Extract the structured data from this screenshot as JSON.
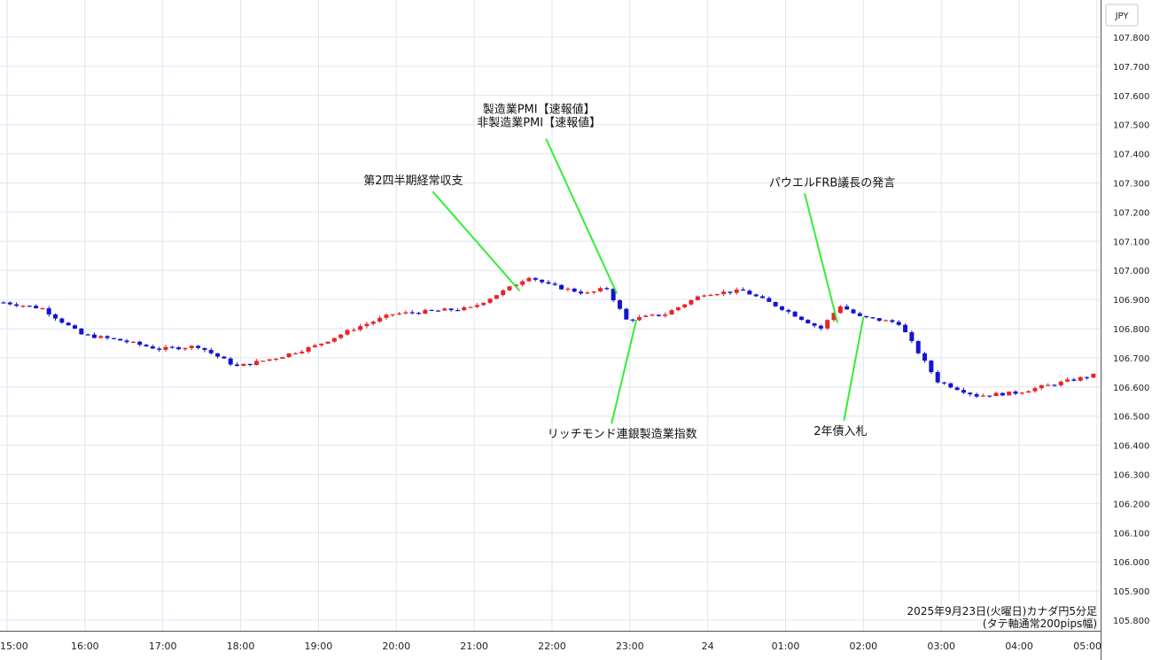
{
  "chart_data": {
    "type": "candlestick",
    "currency": "JPY",
    "ylim": [
      105.78,
      107.87
    ],
    "y_ticks": [
      "107.800",
      "107.700",
      "107.600",
      "107.500",
      "107.400",
      "107.300",
      "107.200",
      "107.100",
      "107.000",
      "106.900",
      "106.800",
      "106.700",
      "106.600",
      "106.500",
      "106.400",
      "106.300",
      "106.200",
      "106.100",
      "106.000",
      "105.900",
      "105.800"
    ],
    "x_ticks": [
      "15:00",
      "16:00",
      "17:00",
      "18:00",
      "19:00",
      "20:00",
      "21:00",
      "22:00",
      "23:00",
      "24",
      "01:00",
      "02:00",
      "03:00",
      "04:00",
      "05:00"
    ],
    "grid": true,
    "colors": {
      "up": "#e8232a",
      "down": "#1414d2",
      "annotation_line": "#33ee33",
      "grid": "#dde6f0"
    },
    "series": [
      {
        "time": "15:00",
        "close": 106.89
      },
      {
        "time": "15:30",
        "close": 106.87
      },
      {
        "time": "16:00",
        "close": 106.78
      },
      {
        "time": "16:30",
        "close": 106.76
      },
      {
        "time": "17:00",
        "close": 106.73
      },
      {
        "time": "17:30",
        "close": 106.74
      },
      {
        "time": "18:00",
        "close": 106.67
      },
      {
        "time": "18:30",
        "close": 106.7
      },
      {
        "time": "19:00",
        "close": 106.74
      },
      {
        "time": "19:30",
        "close": 106.8
      },
      {
        "time": "20:00",
        "close": 106.85
      },
      {
        "time": "20:30",
        "close": 106.86
      },
      {
        "time": "21:00",
        "close": 106.87
      },
      {
        "time": "21:30",
        "close": 106.94
      },
      {
        "time": "21:45",
        "close": 106.98
      },
      {
        "time": "22:00",
        "close": 106.95
      },
      {
        "time": "22:30",
        "close": 106.92
      },
      {
        "time": "22:45",
        "close": 106.94
      },
      {
        "time": "23:00",
        "close": 106.83
      },
      {
        "time": "23:30",
        "close": 106.85
      },
      {
        "time": "24:00",
        "close": 106.92
      },
      {
        "time": "00:30",
        "close": 106.93
      },
      {
        "time": "01:00",
        "close": 106.87
      },
      {
        "time": "01:30",
        "close": 106.8
      },
      {
        "time": "01:45",
        "close": 106.88
      },
      {
        "time": "02:00",
        "close": 106.84
      },
      {
        "time": "02:30",
        "close": 106.82
      },
      {
        "time": "03:00",
        "close": 106.62
      },
      {
        "time": "03:30",
        "close": 106.57
      },
      {
        "time": "04:00",
        "close": 106.58
      },
      {
        "time": "04:30",
        "close": 106.61
      },
      {
        "time": "05:00",
        "close": 106.64
      }
    ],
    "annotations": [
      {
        "text": "第2四半期経常収支",
        "time": "21:35",
        "value": 106.93
      },
      {
        "text": "製造業PMI【速報値】\n非製造業PMI【速報値】",
        "time": "22:50",
        "value": 106.92
      },
      {
        "text": "リッチモンド連銀製造業指数",
        "time": "23:05",
        "value": 106.83
      },
      {
        "text": "パウエルFRB議長の発言",
        "time": "01:40",
        "value": 106.82
      },
      {
        "text": "2年債入札",
        "time": "02:00",
        "value": 106.84
      }
    ],
    "footnote": [
      "2025年9月23日(火曜日)カナダ円5分足",
      "(タテ軸通常200pips幅)"
    ]
  }
}
